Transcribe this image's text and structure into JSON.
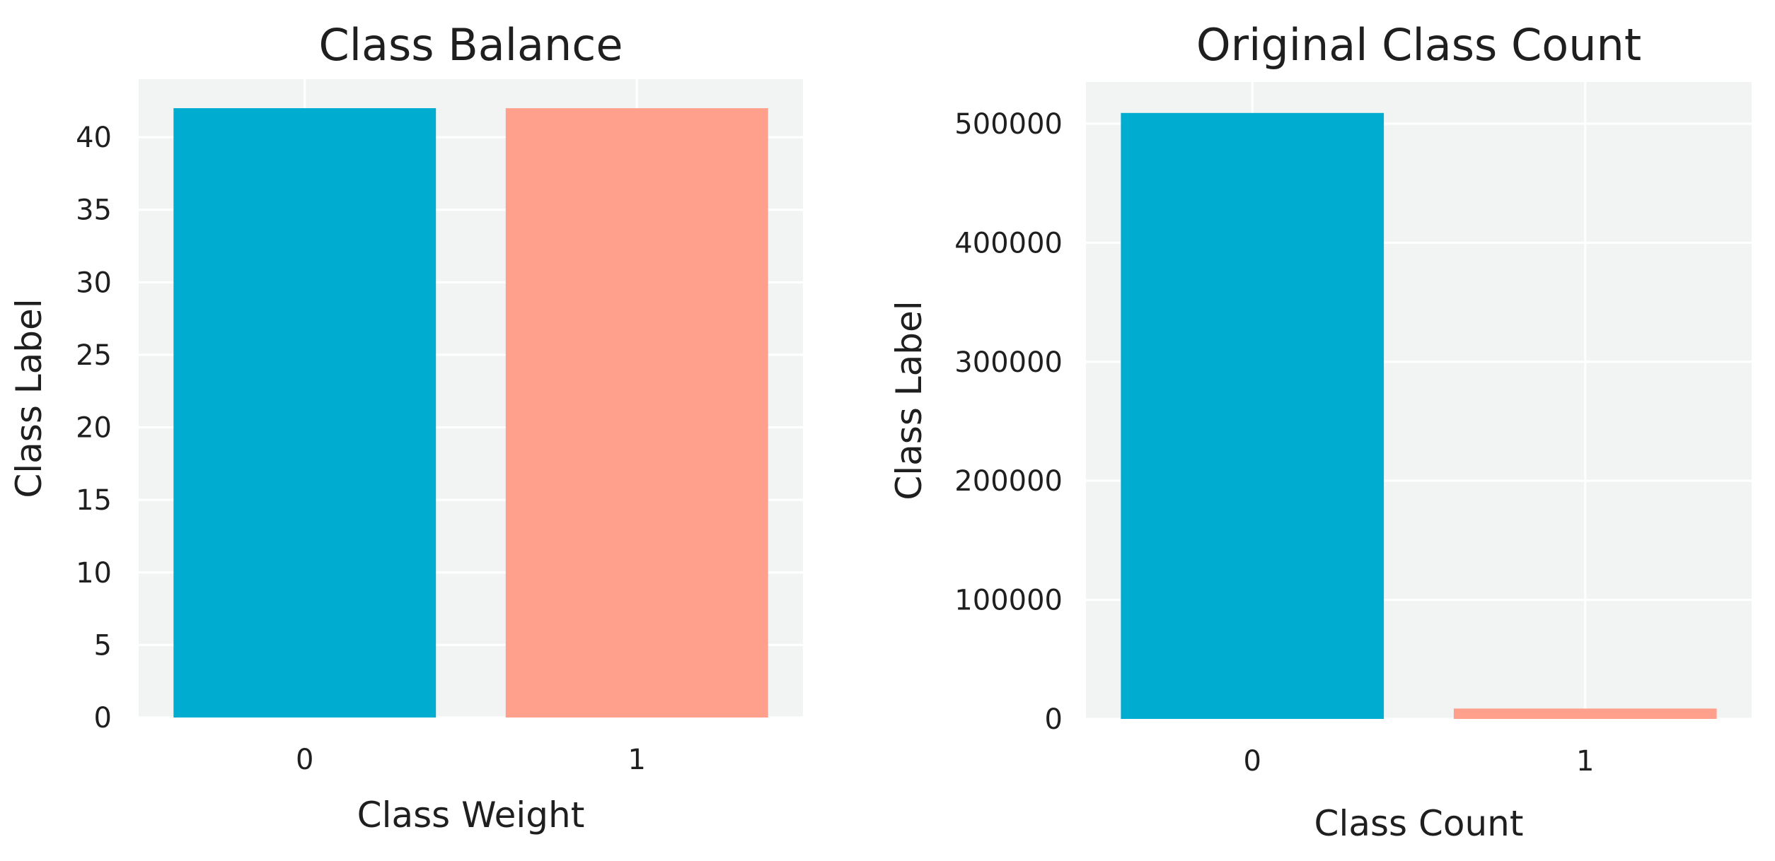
{
  "chart_data": [
    {
      "type": "bar",
      "title": "Class Balance",
      "xlabel": "Class Weight",
      "ylabel": "Class Label",
      "categories": [
        "0",
        "1"
      ],
      "values": [
        42,
        42
      ],
      "colors": [
        "#00acd0",
        "#ffa08c"
      ],
      "ylim": [
        0,
        44
      ],
      "yticks": [
        0,
        5,
        10,
        15,
        20,
        25,
        30,
        35,
        40
      ],
      "ytick_labels": [
        "0",
        "5",
        "10",
        "15",
        "20",
        "25",
        "30",
        "35",
        "40"
      ],
      "grid": true,
      "background": "#f2f4f4"
    },
    {
      "type": "bar",
      "title": "Original Class Count",
      "xlabel": "Class Count",
      "ylabel": "Class Label",
      "categories": [
        "0",
        "1"
      ],
      "values": [
        509000,
        8700
      ],
      "colors": [
        "#00acd0",
        "#ffa08c"
      ],
      "ylim": [
        0,
        535000
      ],
      "yticks": [
        0,
        100000,
        200000,
        300000,
        400000,
        500000
      ],
      "ytick_labels": [
        "0",
        "100000",
        "200000",
        "300000",
        "400000",
        "500000"
      ],
      "grid": true,
      "background": "#f2f4f4"
    }
  ]
}
